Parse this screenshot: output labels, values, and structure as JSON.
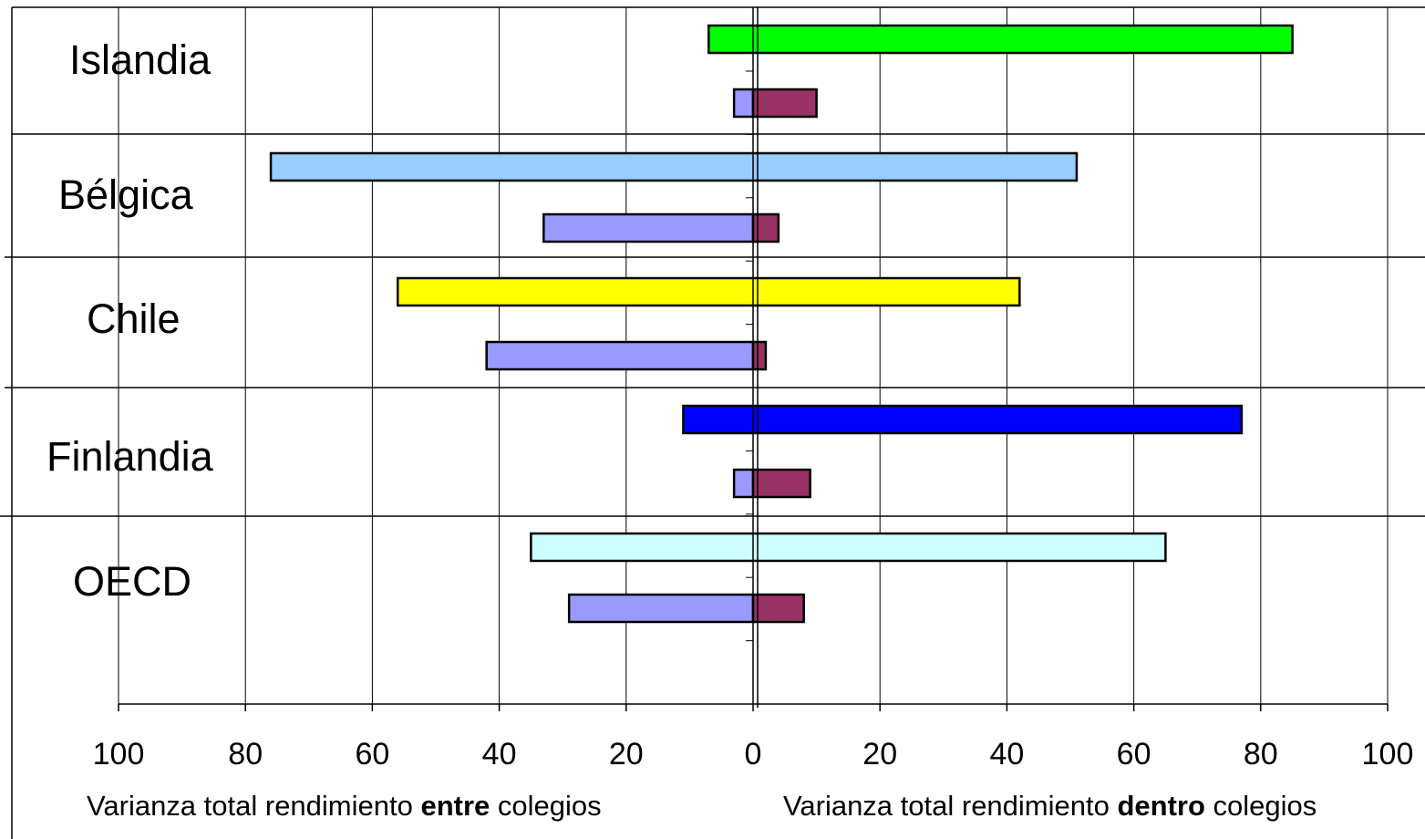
{
  "chart_data": {
    "type": "bar",
    "orientation": "horizontal-diverging",
    "categories": [
      "Islandia",
      "Bélgica",
      "Chile",
      "Finlandia",
      "OECD"
    ],
    "series": [
      {
        "role": "total",
        "between": [
          7,
          76,
          56,
          11,
          35
        ],
        "within": [
          85,
          51,
          42,
          77,
          65
        ],
        "colors": [
          "#00ff00",
          "#99ccff",
          "#ffff00",
          "#0000ff",
          "#ccffff"
        ]
      },
      {
        "role": "explained",
        "between": [
          3,
          33,
          42,
          3,
          29
        ],
        "within": [
          10,
          4,
          2,
          9,
          8
        ],
        "color_between": "#9999ff",
        "color_within": "#993366"
      }
    ],
    "x_tick_labels": [
      "100",
      "80",
      "60",
      "40",
      "20",
      "0",
      "20",
      "40",
      "60",
      "80",
      "100"
    ],
    "xlim": [
      -100,
      100
    ],
    "grid": true,
    "captions": {
      "left": {
        "pre": "Varianza total rendimiento ",
        "bold": "entre",
        "post": " colegios"
      },
      "right": {
        "pre": "Varianza total rendimiento ",
        "bold": "dentro",
        "post": " colegios"
      }
    }
  }
}
